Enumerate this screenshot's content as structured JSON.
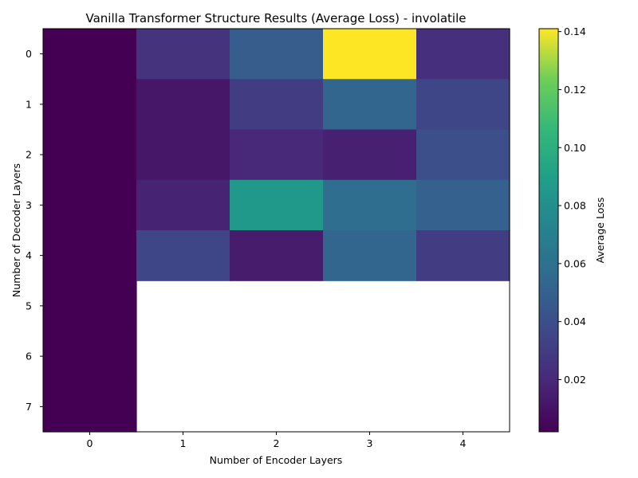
{
  "chart_data": {
    "type": "heatmap",
    "title": "Vanilla Transformer Structure Results (Average Loss) - involatile",
    "xlabel": "Number of Encoder Layers",
    "ylabel": "Number of Decoder Layers",
    "x_categories": [
      "0",
      "1",
      "2",
      "3",
      "4"
    ],
    "y_categories": [
      "0",
      "1",
      "2",
      "3",
      "4",
      "5",
      "6",
      "7"
    ],
    "values": [
      [
        0.002,
        0.025,
        0.048,
        0.141,
        0.023
      ],
      [
        0.002,
        0.012,
        0.03,
        0.053,
        0.035
      ],
      [
        0.002,
        0.012,
        0.02,
        0.016,
        0.04
      ],
      [
        0.002,
        0.017,
        0.086,
        0.058,
        0.05
      ],
      [
        0.002,
        0.035,
        0.014,
        0.053,
        0.03
      ],
      [
        0.002,
        null,
        null,
        null,
        null
      ],
      [
        0.002,
        null,
        null,
        null,
        null
      ],
      [
        0.002,
        null,
        null,
        null,
        null
      ]
    ],
    "colormap": "viridis",
    "colorbar": {
      "label": "Average Loss",
      "range": [
        0.002,
        0.141
      ],
      "ticks": [
        "0.02",
        "0.04",
        "0.06",
        "0.08",
        "0.10",
        "0.12",
        "0.14"
      ],
      "tick_values": [
        0.02,
        0.04,
        0.06,
        0.08,
        0.1,
        0.12,
        0.14
      ]
    },
    "grid": false
  }
}
